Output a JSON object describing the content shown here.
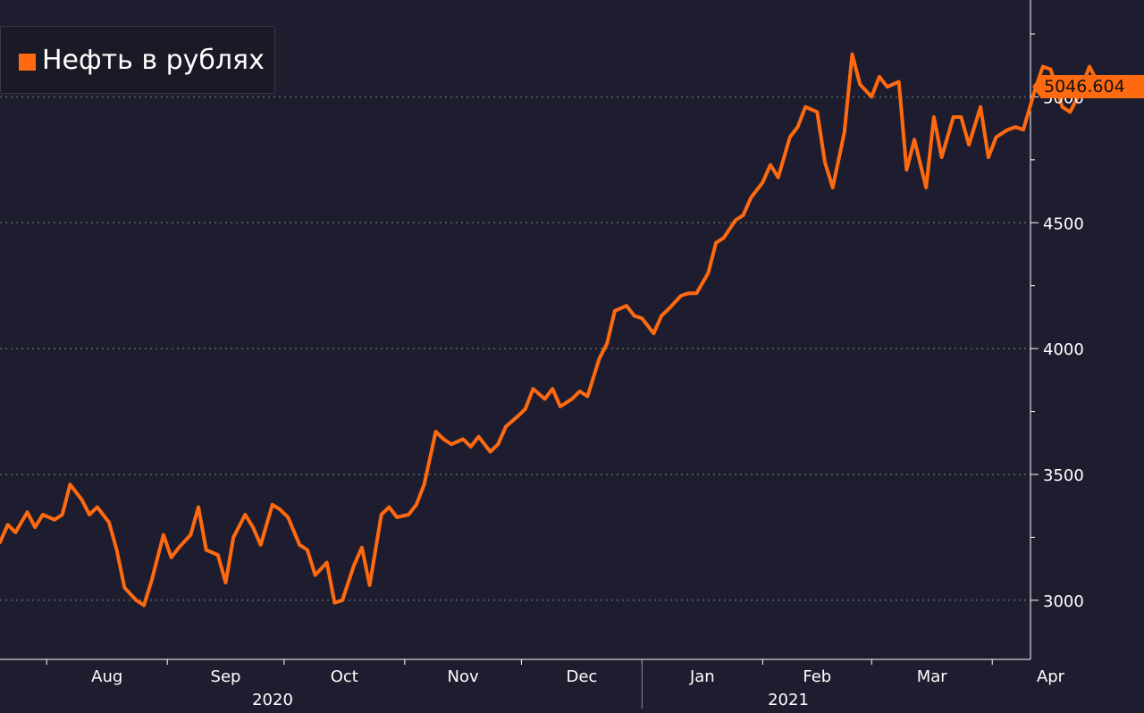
{
  "legend": {
    "label": "Нефть в рублях",
    "color": "#ff6a10"
  },
  "last_value_label": "5046.604",
  "colors": {
    "background": "#1e1d30",
    "series": "#ff6a10",
    "axis": "#ffffff",
    "grid": "#4a5a4a"
  },
  "chart_data": {
    "type": "line",
    "title": "",
    "xlabel": "",
    "ylabel": "",
    "x_tick_labels": [
      "Aug",
      "Sep",
      "Oct",
      "Nov",
      "Dec",
      "Jan",
      "Feb",
      "Mar",
      "Apr"
    ],
    "year_labels": [
      "2020",
      "2021"
    ],
    "y_ticks": [
      3000,
      3500,
      4000,
      4500,
      5000
    ],
    "y_tick_labels": [
      "3000",
      "3500",
      "4000",
      "4500",
      "5000"
    ],
    "ylim": [
      2765,
      5385
    ],
    "xlim": [
      "2020-07-20",
      "2021-05-10"
    ],
    "grid": "horizontal dotted",
    "legend_position": "top-left",
    "last_value": 5046.604,
    "series": [
      {
        "name": "Нефть в рублях",
        "color": "#ff6a10",
        "x": [
          "2020-07-20",
          "2020-07-22",
          "2020-07-24",
          "2020-07-27",
          "2020-07-29",
          "2020-07-31",
          "2020-08-03",
          "2020-08-05",
          "2020-08-07",
          "2020-08-10",
          "2020-08-12",
          "2020-08-14",
          "2020-08-17",
          "2020-08-19",
          "2020-08-21",
          "2020-08-24",
          "2020-08-26",
          "2020-08-28",
          "2020-08-31",
          "2020-09-02",
          "2020-09-04",
          "2020-09-07",
          "2020-09-09",
          "2020-09-11",
          "2020-09-14",
          "2020-09-16",
          "2020-09-18",
          "2020-09-21",
          "2020-09-23",
          "2020-09-25",
          "2020-09-28",
          "2020-09-30",
          "2020-10-02",
          "2020-10-05",
          "2020-10-07",
          "2020-10-09",
          "2020-10-12",
          "2020-10-14",
          "2020-10-16",
          "2020-10-19",
          "2020-10-21",
          "2020-10-23",
          "2020-10-26",
          "2020-10-28",
          "2020-10-30",
          "2020-11-02",
          "2020-11-04",
          "2020-11-06",
          "2020-11-09",
          "2020-11-11",
          "2020-11-13",
          "2020-11-16",
          "2020-11-18",
          "2020-11-20",
          "2020-11-23",
          "2020-11-25",
          "2020-11-27",
          "2020-11-30",
          "2020-12-02",
          "2020-12-04",
          "2020-12-07",
          "2020-12-09",
          "2020-12-11",
          "2020-12-14",
          "2020-12-16",
          "2020-12-18",
          "2020-12-21",
          "2020-12-23",
          "2020-12-25",
          "2020-12-28",
          "2020-12-30",
          "2021-01-01",
          "2021-01-04",
          "2021-01-06",
          "2021-01-08",
          "2021-01-11",
          "2021-01-13",
          "2021-01-15",
          "2021-01-18",
          "2021-01-20",
          "2021-01-22",
          "2021-01-25",
          "2021-01-27",
          "2021-01-29",
          "2021-02-01",
          "2021-02-03",
          "2021-02-05",
          "2021-02-08",
          "2021-02-10",
          "2021-02-12",
          "2021-02-15",
          "2021-02-17",
          "2021-02-19",
          "2021-02-22",
          "2021-02-24",
          "2021-02-26",
          "2021-03-01",
          "2021-03-03",
          "2021-03-05",
          "2021-03-08",
          "2021-03-10",
          "2021-03-12",
          "2021-03-15",
          "2021-03-17",
          "2021-03-19",
          "2021-03-22",
          "2021-03-24",
          "2021-03-26",
          "2021-03-29",
          "2021-03-31",
          "2021-04-02",
          "2021-04-05",
          "2021-04-07",
          "2021-04-09",
          "2021-04-12",
          "2021-04-14",
          "2021-04-16",
          "2021-04-19",
          "2021-04-21",
          "2021-04-23",
          "2021-04-26",
          "2021-04-28",
          "2021-04-30"
        ],
        "values": [
          3230,
          3300,
          3270,
          3350,
          3290,
          3340,
          3320,
          3340,
          3460,
          3400,
          3340,
          3370,
          3310,
          3200,
          3050,
          3000,
          2980,
          3080,
          3260,
          3170,
          3210,
          3260,
          3370,
          3200,
          3180,
          3070,
          3250,
          3340,
          3290,
          3220,
          3380,
          3360,
          3330,
          3220,
          3200,
          3100,
          3150,
          2990,
          3000,
          3140,
          3210,
          3060,
          3340,
          3370,
          3330,
          3340,
          3380,
          3460,
          3670,
          3640,
          3620,
          3640,
          3610,
          3650,
          3590,
          3620,
          3690,
          3730,
          3760,
          3840,
          3800,
          3840,
          3770,
          3800,
          3830,
          3810,
          3960,
          4020,
          4150,
          4170,
          4130,
          4120,
          4060,
          4130,
          4160,
          4210,
          4220,
          4220,
          4300,
          4420,
          4440,
          4510,
          4530,
          4600,
          4660,
          4730,
          4680,
          4840,
          4880,
          4960,
          4940,
          4740,
          4640,
          4860,
          5170,
          5050,
          5000,
          5080,
          5040,
          5060,
          4710,
          4830,
          4640,
          4920,
          4760,
          4920,
          4920,
          4810,
          4960,
          4760,
          4840,
          4870,
          4880,
          4870,
          5030,
          5120,
          5110,
          4960,
          4940,
          5000,
          5120,
          5060,
          5046.604
        ]
      }
    ]
  }
}
